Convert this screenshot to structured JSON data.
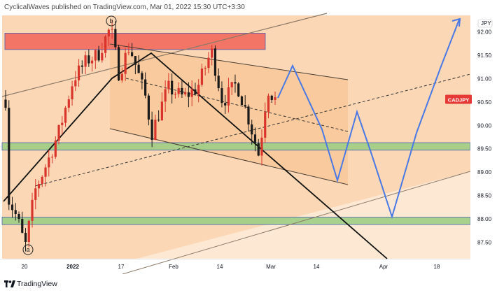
{
  "header": {
    "publisher_text": "CyclicalWaves published on TradingView.com, Mar 01, 2022 15:30 UTC+3:30"
  },
  "footer": {
    "brand": "TradingView"
  },
  "chart_data": {
    "type": "candlestick",
    "symbol_badge": "CADJPY",
    "currency_label": "JPY",
    "last_price": 90.55,
    "ylim": [
      87.15,
      92.35
    ],
    "y_ticks": [
      "92.00",
      "91.50",
      "91.00",
      "90.50",
      "90.00",
      "89.50",
      "89.00",
      "88.50",
      "88.00",
      "87.50"
    ],
    "x_ticks": [
      {
        "label": "20",
        "bold": false
      },
      {
        "label": "2022",
        "bold": true
      },
      {
        "label": "17",
        "bold": false
      },
      {
        "label": "Feb",
        "bold": false
      },
      {
        "label": "14",
        "bold": false
      },
      {
        "label": "Mar",
        "bold": false
      },
      {
        "label": "14",
        "bold": false
      },
      {
        "label": "Apr",
        "bold": false
      },
      {
        "label": "18",
        "bold": false
      }
    ],
    "wave_labels": [
      "b",
      "a"
    ],
    "zones": [
      {
        "name": "resistance",
        "low": 91.62,
        "high": 91.97,
        "color": "#f26b5e"
      },
      {
        "name": "support-upper",
        "low": 89.47,
        "high": 89.63,
        "color": "#9fcf86"
      },
      {
        "name": "support-lower",
        "low": 87.88,
        "high": 88.04,
        "color": "#9fcf86"
      }
    ],
    "colors": {
      "background_light": "#fde8d4",
      "background_dark": "#f9d2ab",
      "channel_fill": "#f7c089",
      "up_candle": "#d9342b",
      "down_candle": "#1a1a1a",
      "projection": "#4a79e6",
      "badge": "#e53935"
    },
    "candles_summary": "Daily CADJPY candles from mid-December 2021 to early March 2022, rising from ~87.4 (wave a) to ~92.1 (wave b), then ranging between ~89.2 and ~91.7."
  }
}
